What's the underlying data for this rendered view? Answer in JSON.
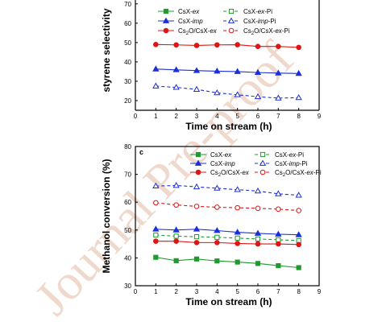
{
  "watermark": "Journal Pre-proof",
  "colors": {
    "green": "#1f9a2e",
    "blue": "#1d2fd6",
    "red": "#e01414",
    "watermark": "#efd9cc"
  },
  "chart_data": [
    {
      "type": "line",
      "panel_label": "",
      "xlabel": "Time on stream (h)",
      "ylabel": "styrene selectivity",
      "xlim": [
        0,
        9
      ],
      "ylim": [
        15,
        72
      ],
      "xticks": [
        0,
        1,
        2,
        3,
        4,
        5,
        6,
        7,
        8,
        9
      ],
      "yticks": [
        20,
        30,
        40,
        50,
        60,
        70
      ],
      "grid": false,
      "legend_position": "top",
      "series": [
        {
          "name": "CsX-ex",
          "color": "green",
          "marker": "square",
          "filled": true,
          "dashed": false,
          "x": [],
          "y": []
        },
        {
          "name": "CsX-ex-Pi",
          "color": "green",
          "marker": "square",
          "filled": false,
          "dashed": true,
          "x": [],
          "y": []
        },
        {
          "name": "CsX-imp",
          "color": "blue",
          "marker": "triangle",
          "filled": true,
          "dashed": false,
          "x": [
            1,
            2,
            3,
            4,
            5,
            6,
            7,
            8
          ],
          "y": [
            36.3,
            35.9,
            35.5,
            35.2,
            35.0,
            34.5,
            34.2,
            34.0
          ]
        },
        {
          "name": "CsX-imp-Pi",
          "color": "blue",
          "marker": "triangle",
          "filled": false,
          "dashed": true,
          "x": [
            1,
            2,
            3,
            4,
            5,
            6,
            7,
            8
          ],
          "y": [
            27.5,
            26.8,
            25.8,
            24.0,
            23.0,
            22.0,
            21.3,
            21.5
          ]
        },
        {
          "name": "Cs2O/CsX-ex",
          "color": "red",
          "marker": "circle",
          "filled": true,
          "dashed": false,
          "x": [
            1,
            2,
            3,
            4,
            5,
            6,
            7,
            8
          ],
          "y": [
            49.0,
            48.8,
            48.5,
            48.8,
            48.9,
            48.0,
            48.0,
            47.5
          ]
        },
        {
          "name": "Cs2O/CsX-ex-Pi",
          "color": "red",
          "marker": "circle",
          "filled": false,
          "dashed": true,
          "x": [],
          "y": []
        }
      ]
    },
    {
      "type": "line",
      "panel_label": "c",
      "xlabel": "Time on stream (h)",
      "ylabel": "Methanol conversion (%)",
      "xlim": [
        0,
        9
      ],
      "ylim": [
        30,
        80
      ],
      "xticks": [
        0,
        1,
        2,
        3,
        4,
        5,
        6,
        7,
        8,
        9
      ],
      "yticks": [
        30,
        40,
        50,
        60,
        70,
        80
      ],
      "grid": false,
      "legend_position": "top",
      "series": [
        {
          "name": "CsX-ex",
          "color": "green",
          "marker": "square",
          "filled": true,
          "dashed": false,
          "x": [
            1,
            2,
            3,
            4,
            5,
            6,
            7,
            8
          ],
          "y": [
            40.2,
            39.0,
            39.6,
            38.9,
            38.5,
            38.0,
            37.2,
            36.5
          ]
        },
        {
          "name": "CsX-ex-Pi",
          "color": "green",
          "marker": "square",
          "filled": false,
          "dashed": true,
          "x": [
            1,
            2,
            3,
            4,
            5,
            6,
            7,
            8
          ],
          "y": [
            48.2,
            47.8,
            47.6,
            47.4,
            47.1,
            46.8,
            46.5,
            46.2
          ]
        },
        {
          "name": "CsX-imp",
          "color": "blue",
          "marker": "triangle",
          "filled": true,
          "dashed": false,
          "x": [
            1,
            2,
            3,
            4,
            5,
            6,
            7,
            8
          ],
          "y": [
            50.3,
            50.0,
            50.3,
            49.8,
            49.2,
            48.8,
            48.5,
            48.3
          ]
        },
        {
          "name": "CsX-imp-Pi",
          "color": "blue",
          "marker": "triangle",
          "filled": false,
          "dashed": true,
          "x": [
            1,
            2,
            3,
            4,
            5,
            6,
            7,
            8
          ],
          "y": [
            65.8,
            66.0,
            65.5,
            65.0,
            64.5,
            64.0,
            63.0,
            62.5
          ]
        },
        {
          "name": "Cs2O/CsX-ex",
          "color": "red",
          "marker": "circle",
          "filled": true,
          "dashed": false,
          "x": [
            1,
            2,
            3,
            4,
            5,
            6,
            7,
            8
          ],
          "y": [
            46.0,
            46.0,
            45.5,
            45.5,
            45.2,
            45.0,
            45.0,
            44.8
          ]
        },
        {
          "name": "Cs2O/CsX-ex-Pi",
          "color": "red",
          "marker": "circle",
          "filled": false,
          "dashed": true,
          "x": [
            1,
            2,
            3,
            4,
            5,
            6,
            7,
            8
          ],
          "y": [
            59.8,
            59.0,
            58.5,
            58.2,
            58.0,
            57.8,
            57.5,
            57.0
          ]
        }
      ]
    }
  ]
}
